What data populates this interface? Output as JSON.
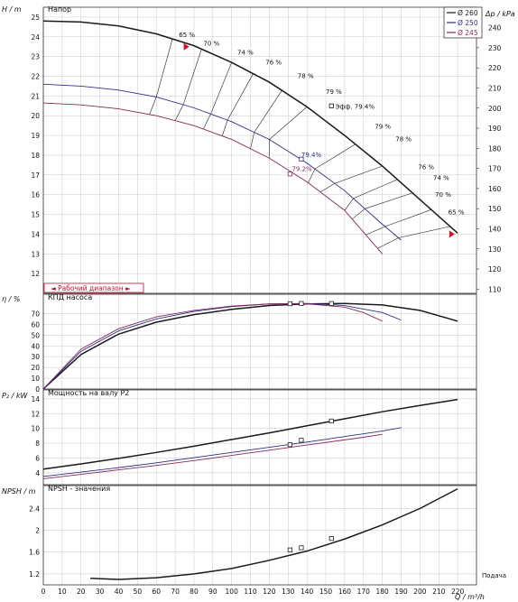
{
  "chart_data": [
    {
      "panel": "head",
      "type": "line",
      "title": "Напор",
      "ylabel": "H / m",
      "ylabel_right": "Δp / kPa",
      "ylim": [
        11,
        25.5
      ],
      "yticks": [
        12,
        13,
        14,
        15,
        16,
        17,
        18,
        19,
        20,
        21,
        22,
        23,
        24,
        25
      ],
      "yticks_right": [
        110,
        120,
        130,
        140,
        150,
        160,
        170,
        180,
        190,
        200,
        210,
        220,
        230,
        240
      ],
      "series": [
        {
          "name": "Ø 260",
          "color": "#1a1a1a",
          "x": [
            0,
            20,
            40,
            60,
            80,
            100,
            120,
            140,
            160,
            180,
            200,
            220
          ],
          "y": [
            24.8,
            24.75,
            24.55,
            24.15,
            23.55,
            22.7,
            21.7,
            20.45,
            19.0,
            17.45,
            15.75,
            14.05
          ]
        },
        {
          "name": "Ø 250",
          "color": "#2e2e8c",
          "x": [
            0,
            20,
            40,
            60,
            80,
            100,
            120,
            140,
            160,
            180,
            190
          ],
          "y": [
            21.6,
            21.5,
            21.3,
            20.95,
            20.4,
            19.7,
            18.8,
            17.6,
            16.2,
            14.5,
            13.7
          ]
        },
        {
          "name": "Ø 245",
          "color": "#8a2a5a",
          "x": [
            0,
            20,
            40,
            60,
            80,
            100,
            120,
            140,
            160,
            170,
            180
          ],
          "y": [
            20.65,
            20.55,
            20.35,
            20.0,
            19.5,
            18.8,
            17.85,
            16.65,
            15.2,
            14.1,
            13.0
          ]
        }
      ],
      "efficiency_labels": [
        {
          "x": 72,
          "y": 24.0,
          "text": "65 %"
        },
        {
          "x": 85,
          "y": 23.55,
          "text": "70 %"
        },
        {
          "x": 103,
          "y": 23.1,
          "text": "74 %"
        },
        {
          "x": 118,
          "y": 22.6,
          "text": "76 %"
        },
        {
          "x": 135,
          "y": 21.9,
          "text": "78 %"
        },
        {
          "x": 150,
          "y": 21.1,
          "text": "79 %"
        },
        {
          "x": 155,
          "y": 20.35,
          "text": "Эфф.  79.4%"
        },
        {
          "x": 176,
          "y": 19.35,
          "text": "79 %"
        },
        {
          "x": 187,
          "y": 18.7,
          "text": "78 %"
        },
        {
          "x": 199,
          "y": 17.3,
          "text": "76 %"
        },
        {
          "x": 207,
          "y": 16.75,
          "text": "74 %"
        },
        {
          "x": 208,
          "y": 15.9,
          "text": "70 %"
        },
        {
          "x": 215,
          "y": 15.0,
          "text": "65 %"
        },
        {
          "x": 137,
          "y": 17.9,
          "text": "79.4%"
        },
        {
          "x": 132,
          "y": 17.2,
          "text": "79.2%"
        }
      ],
      "duty_points": [
        {
          "x": 153,
          "y": 20.5,
          "series": "Ø 260"
        },
        {
          "x": 137,
          "y": 17.8,
          "series": "Ø 250"
        },
        {
          "x": 131,
          "y": 17.05,
          "series": "Ø 245"
        }
      ],
      "operating_range_label": "◄ Рабочий диапазон ►",
      "range_markers": [
        {
          "x": 76,
          "y": 23.5
        },
        {
          "x": 217,
          "y": 14.0
        }
      ]
    },
    {
      "panel": "efficiency",
      "type": "line",
      "title": "КПД насоса",
      "ylabel": "η / %",
      "ylim": [
        0,
        88
      ],
      "yticks": [
        0,
        10,
        20,
        30,
        40,
        50,
        60,
        70
      ],
      "series": [
        {
          "name": "Ø 260",
          "x": [
            0,
            20,
            40,
            60,
            80,
            100,
            120,
            140,
            160,
            180,
            200,
            220
          ],
          "y": [
            0,
            32,
            51,
            62,
            69,
            74,
            77.5,
            79,
            79.4,
            78,
            73,
            63
          ]
        },
        {
          "name": "Ø 250",
          "x": [
            0,
            20,
            40,
            60,
            80,
            100,
            120,
            140,
            160,
            180,
            190
          ],
          "y": [
            0,
            35,
            54,
            65,
            72,
            76.5,
            79,
            79.4,
            77.5,
            71,
            64
          ]
        },
        {
          "name": "Ø 245",
          "x": [
            0,
            20,
            40,
            60,
            80,
            100,
            120,
            140,
            160,
            170,
            180
          ],
          "y": [
            0,
            37,
            56,
            67,
            73,
            77,
            79,
            79.1,
            76,
            71,
            63
          ]
        }
      ],
      "duty_points": [
        {
          "x": 153,
          "y": 79.4
        },
        {
          "x": 137,
          "y": 79.4
        },
        {
          "x": 131,
          "y": 79.2
        }
      ]
    },
    {
      "panel": "power",
      "type": "line",
      "title": "Мощность на валу P2",
      "ylabel": "P₂ / kW",
      "ylim": [
        2.4,
        15.2
      ],
      "yticks": [
        4,
        6,
        8,
        10,
        12,
        14
      ],
      "series": [
        {
          "name": "Ø 260",
          "x": [
            0,
            20,
            40,
            60,
            80,
            100,
            120,
            140,
            160,
            180,
            200,
            220
          ],
          "y": [
            4.5,
            5.2,
            5.95,
            6.75,
            7.6,
            8.5,
            9.4,
            10.35,
            11.3,
            12.25,
            13.1,
            13.9
          ]
        },
        {
          "name": "Ø 250",
          "x": [
            0,
            20,
            40,
            60,
            80,
            100,
            120,
            140,
            160,
            180,
            190
          ],
          "y": [
            3.5,
            4.1,
            4.7,
            5.35,
            6.05,
            6.75,
            7.45,
            8.15,
            8.9,
            9.65,
            10.1
          ]
        },
        {
          "name": "Ø 245",
          "x": [
            0,
            20,
            40,
            60,
            80,
            100,
            120,
            140,
            160,
            170,
            180
          ],
          "y": [
            3.2,
            3.8,
            4.4,
            5.0,
            5.65,
            6.35,
            7.05,
            7.75,
            8.45,
            8.8,
            9.2
          ]
        }
      ],
      "duty_points": [
        {
          "x": 153,
          "y": 11.0
        },
        {
          "x": 137,
          "y": 8.4
        },
        {
          "x": 131,
          "y": 7.8
        }
      ]
    },
    {
      "panel": "npsh",
      "type": "line",
      "title": "NPSH - значения",
      "ylabel": "NPSH / m",
      "xlabel": "Q / m³/h",
      "x_side_label": "Подача",
      "ylim": [
        1.0,
        2.82
      ],
      "yticks": [
        1.2,
        1.6,
        2,
        2.4
      ],
      "xlim": [
        0,
        230
      ],
      "xticks": [
        0,
        10,
        20,
        30,
        40,
        50,
        60,
        70,
        80,
        90,
        100,
        110,
        120,
        130,
        140,
        150,
        160,
        170,
        180,
        190,
        200,
        210,
        220
      ],
      "series": [
        {
          "name": "Ø 260",
          "x": [
            25,
            40,
            60,
            80,
            100,
            120,
            140,
            160,
            180,
            200,
            220
          ],
          "y": [
            1.12,
            1.1,
            1.13,
            1.2,
            1.3,
            1.45,
            1.62,
            1.84,
            2.1,
            2.4,
            2.76
          ]
        }
      ],
      "duty_points": [
        {
          "x": 131,
          "y": 1.64
        },
        {
          "x": 137,
          "y": 1.68
        },
        {
          "x": 153,
          "y": 1.85
        }
      ]
    }
  ],
  "legend": [
    "Ø 260",
    "Ø 250",
    "Ø 245"
  ]
}
